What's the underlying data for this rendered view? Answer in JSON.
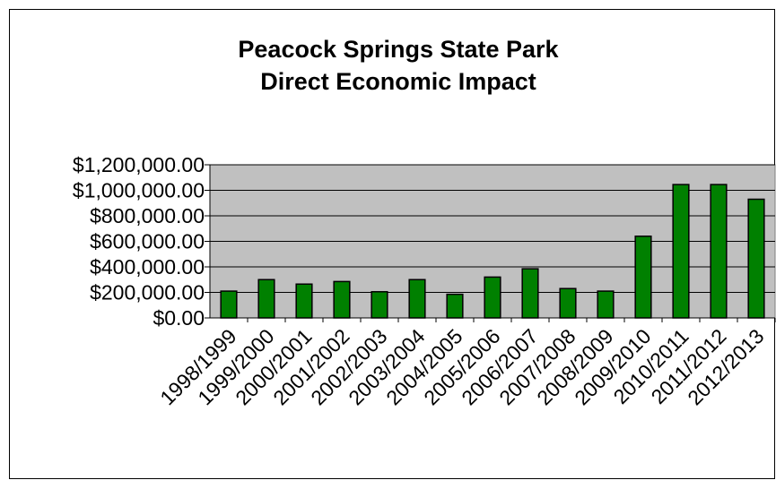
{
  "chart_data": {
    "type": "bar",
    "title_lines": [
      "Peacock Springs State Park",
      "Direct Economic Impact"
    ],
    "xlabel": "",
    "ylabel": "",
    "categories": [
      "1998/1999",
      "1999/2000",
      "2000/2001",
      "2001/2002",
      "2002/2003",
      "2003/2004",
      "2004/2005",
      "2005/2006",
      "2006/2007",
      "2007/2008",
      "2008/2009",
      "2009/2010",
      "2010/2011",
      "2011/2012",
      "2012/2013"
    ],
    "values": [
      210000,
      300000,
      265000,
      285000,
      205000,
      300000,
      185000,
      320000,
      385000,
      230000,
      210000,
      640000,
      1045000,
      1045000,
      930000
    ],
    "ylim": [
      0,
      1200000
    ],
    "yticks": [
      0,
      200000,
      400000,
      600000,
      800000,
      1000000,
      1200000
    ],
    "ytick_labels": [
      "$0.00",
      "$200,000.00",
      "$400,000.00",
      "$600,000.00",
      "$800,000.00",
      "$1,000,000.00",
      "$1,200,000.00"
    ],
    "grid": true,
    "legend": "none",
    "colors": {
      "bar_fill": "#008000",
      "bar_stroke": "#000000",
      "plot_background": "#c0c0c0",
      "gridline": "#000000"
    }
  }
}
